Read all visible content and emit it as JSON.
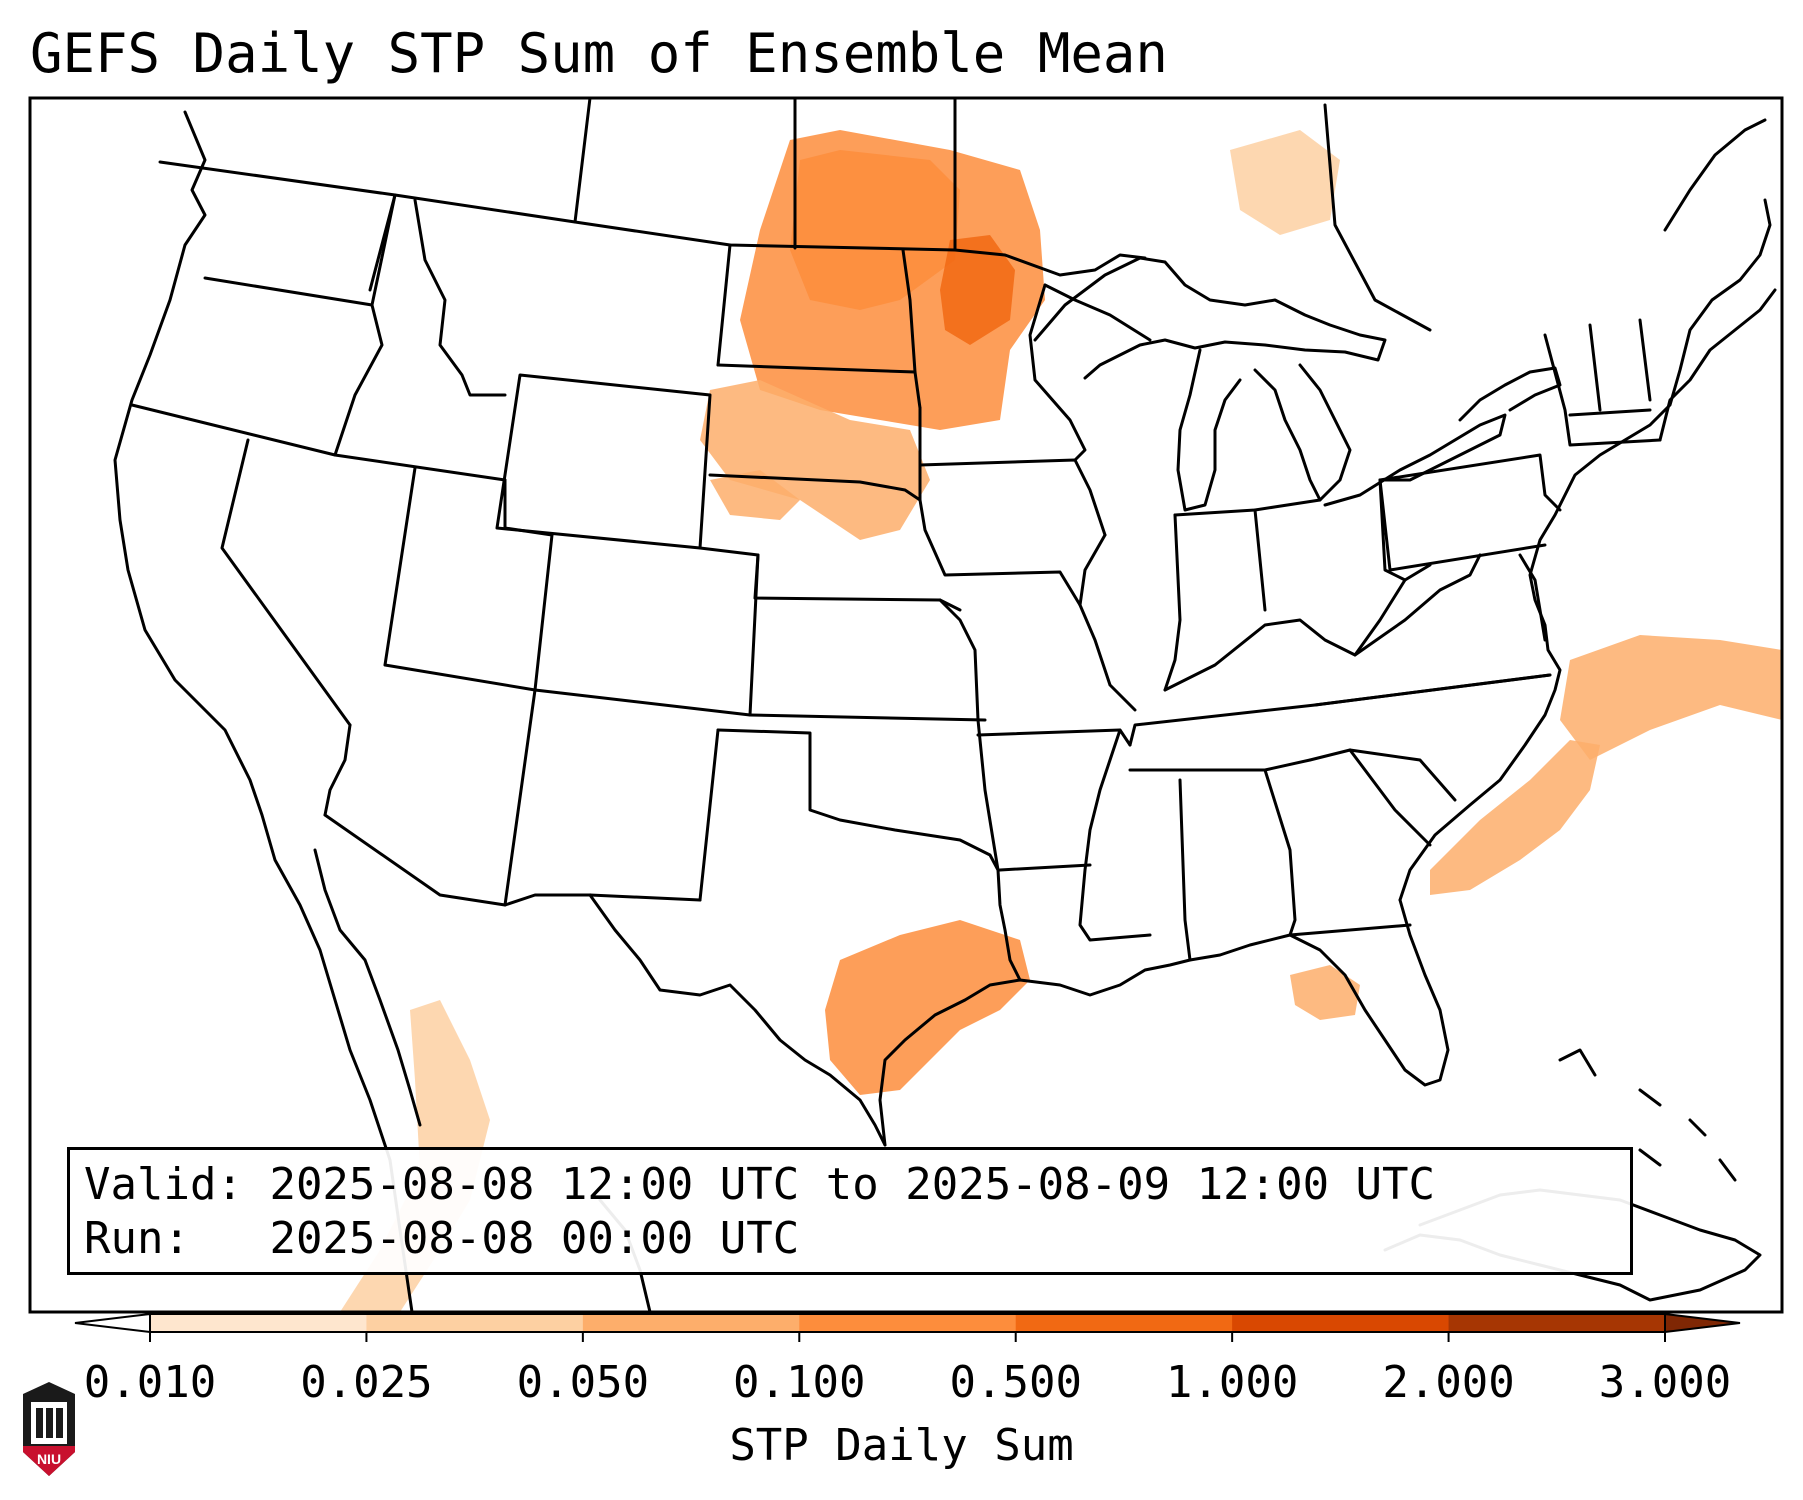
{
  "title": "GEFS Daily STP Sum of Ensemble Mean",
  "info": {
    "valid_label": "Valid:",
    "valid_value": "2025-08-08 12:00 UTC to 2025-08-09 12:00 UTC",
    "run_label": "Run:",
    "run_value": "2025-08-08 00:00 UTC"
  },
  "colorbar": {
    "label": "STP Daily Sum",
    "ticks": [
      "0.010",
      "0.025",
      "0.050",
      "0.100",
      "0.500",
      "1.000",
      "2.000",
      "3.000"
    ],
    "colors": [
      "#fee6ce",
      "#fdd0a2",
      "#fdae6b",
      "#fd8d3c",
      "#f16913",
      "#d94801",
      "#a63603"
    ],
    "under_color": "#ffffff",
    "over_color": "#7f2704"
  },
  "logo": {
    "name": "niu-logo",
    "text": "NIU",
    "color": "#c8102e"
  },
  "regions": [
    {
      "name": "northern-plains-north-dakota-minnesota",
      "level": 3
    },
    {
      "name": "north-dakota-core",
      "level": 3
    },
    {
      "name": "minnesota-core",
      "level": 4
    },
    {
      "name": "south-dakota",
      "level": 2
    },
    {
      "name": "nebraska-north",
      "level": 2
    },
    {
      "name": "east-texas-louisiana",
      "level": 3
    },
    {
      "name": "mid-atlantic-offshore",
      "level": 2
    },
    {
      "name": "carolinas-coast",
      "level": 2
    },
    {
      "name": "florida-panhandle",
      "level": 2
    },
    {
      "name": "mexico-west",
      "level": 1
    },
    {
      "name": "ontario",
      "level": 1
    }
  ]
}
